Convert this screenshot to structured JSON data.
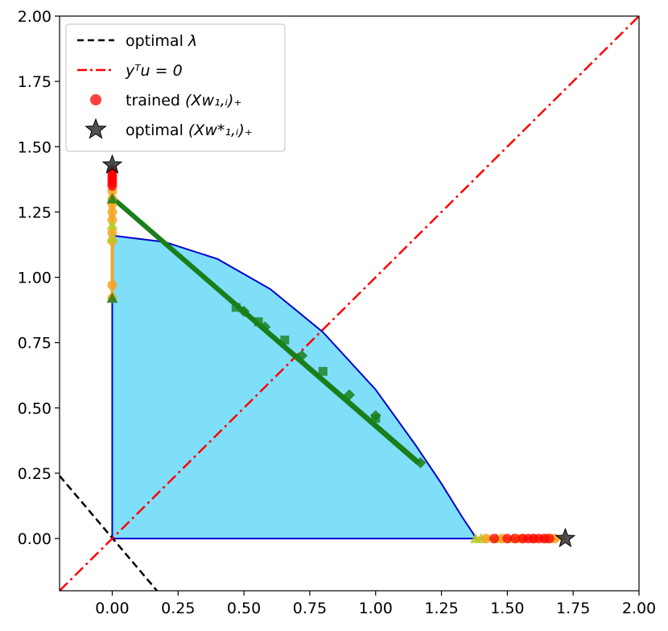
{
  "chart_data": {
    "type": "scatter",
    "title": "",
    "xlabel": "",
    "ylabel": "",
    "xlim": [
      -0.2,
      2.0
    ],
    "ylim": [
      -0.2,
      2.0
    ],
    "grid": false,
    "legend_position": "top-left",
    "x_ticks": [
      "0.00",
      "0.25",
      "0.50",
      "0.75",
      "1.00",
      "1.25",
      "1.50",
      "1.75",
      "2.00"
    ],
    "y_ticks": [
      "0.00",
      "0.25",
      "0.50",
      "0.75",
      "1.00",
      "1.25",
      "1.50",
      "1.75",
      "2.00"
    ],
    "x_tick_values": [
      0,
      0.25,
      0.5,
      0.75,
      1.0,
      1.25,
      1.5,
      1.75,
      2.0
    ],
    "y_tick_values": [
      0,
      0.25,
      0.5,
      0.75,
      1.0,
      1.25,
      1.5,
      1.75,
      2.0
    ],
    "colors": {
      "feasible_fill": "#7fdff9",
      "boundary": "#0000cd",
      "optimal_lambda": "#000000",
      "ytu_line": "#ff0000",
      "trained": "#ff0000",
      "optimal_star": "#333333",
      "path_green": "#1a7f1a",
      "path_orange": "#f5a623",
      "path_yellowgreen": "#b5cc2a"
    },
    "legend": [
      {
        "key": "optimal_lambda",
        "label_plain": "optimal ",
        "label_math": "λ",
        "style": "dashed-black"
      },
      {
        "key": "ytu",
        "label_plain": "",
        "label_math": "yᵀu = 0",
        "style": "dashdot-red"
      },
      {
        "key": "trained",
        "label_plain": "trained ",
        "label_math": "(Xw₁,ᵢ)₊",
        "style": "red-circle"
      },
      {
        "key": "optimal",
        "label_plain": "optimal ",
        "label_math": "(Xw*₁,ᵢ)₊",
        "style": "black-star"
      }
    ],
    "feasible_region": {
      "boundary": [
        [
          0.0,
          1.16
        ],
        [
          0.2,
          1.135
        ],
        [
          0.4,
          1.07
        ],
        [
          0.6,
          0.955
        ],
        [
          0.8,
          0.79
        ],
        [
          1.0,
          0.57
        ],
        [
          1.15,
          0.36
        ],
        [
          1.25,
          0.21
        ],
        [
          1.33,
          0.08
        ],
        [
          1.37,
          0.02
        ],
        [
          1.38,
          0.0
        ]
      ],
      "corner": [
        0.0,
        0.0
      ],
      "left_top": [
        0.0,
        1.16
      ],
      "vertical_top": 0.92
    },
    "optimal_lambda_line": {
      "points": [
        [
          -0.2,
          0.24
        ],
        [
          0.17,
          -0.2
        ]
      ]
    },
    "ytu_line": {
      "points": [
        [
          -0.2,
          -0.2
        ],
        [
          2.0,
          2.0
        ]
      ]
    },
    "optimal_stars": [
      [
        0.0,
        1.43
      ],
      [
        1.72,
        0.0
      ]
    ],
    "green_lines": [
      {
        "points": [
          [
            0.0,
            1.31
          ],
          [
            1.17,
            0.29
          ]
        ]
      },
      {
        "points": [
          [
            0.0,
            1.3
          ],
          [
            1.16,
            0.285
          ]
        ]
      }
    ],
    "green_squares": [
      [
        0.47,
        0.885
      ],
      [
        0.555,
        0.83
      ],
      [
        0.655,
        0.76
      ],
      [
        0.8,
        0.64
      ],
      [
        1.0,
        0.46
      ]
    ],
    "green_diamonds": [
      [
        0.5,
        0.87
      ],
      [
        0.58,
        0.81
      ],
      [
        0.72,
        0.7
      ],
      [
        0.9,
        0.55
      ],
      [
        1.0,
        0.47
      ],
      [
        1.17,
        0.29
      ]
    ],
    "left_vertical_points": {
      "x": 0.0,
      "red": [
        1.35,
        1.36,
        1.37,
        1.38,
        1.39,
        1.4,
        1.41
      ],
      "orange": [
        0.92,
        0.97,
        1.14,
        1.17,
        1.22,
        1.25,
        1.28,
        1.3,
        1.33
      ],
      "green": [
        0.92,
        1.3,
        1.42
      ],
      "yellowgreen": [
        1.15,
        1.2
      ]
    },
    "bottom_horizontal_points": {
      "y": 0.0,
      "red": [
        1.45,
        1.5,
        1.53,
        1.56,
        1.58,
        1.6,
        1.62,
        1.64,
        1.66
      ],
      "orange": [
        1.42,
        1.48,
        1.55,
        1.6,
        1.65,
        1.68
      ],
      "yellowgreen": [
        1.38,
        1.4,
        1.46,
        1.52
      ]
    },
    "left_vertical_segment": {
      "x": 0.0,
      "y_from": 0.92,
      "y_to": 1.43
    },
    "bottom_horizontal_segment": {
      "y": 0.0,
      "x_from": 1.38,
      "x_to": 1.72
    }
  }
}
